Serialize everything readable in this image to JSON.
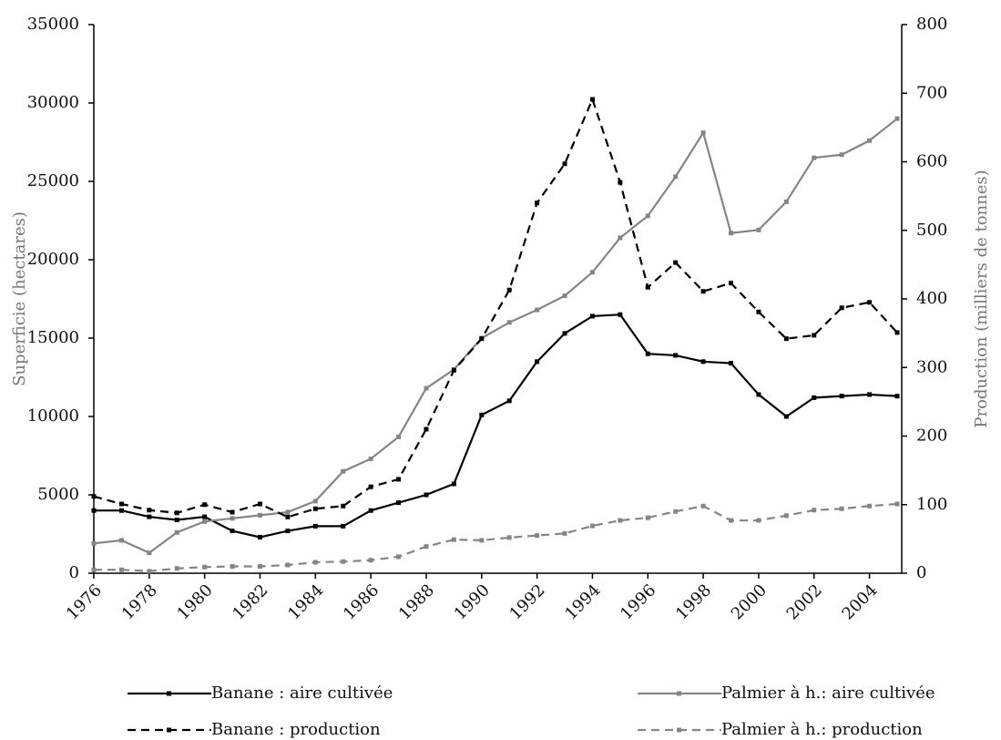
{
  "chart_data": {
    "type": "line",
    "y_label": "Superficie (hectares)",
    "y2_label": "Production (milliers de tonnes)",
    "x": [
      1976,
      1977,
      1978,
      1979,
      1980,
      1981,
      1982,
      1983,
      1984,
      1985,
      1986,
      1987,
      1988,
      1989,
      1990,
      1991,
      1992,
      1993,
      1994,
      1995,
      1996,
      1997,
      1998,
      1999,
      2000,
      2001,
      2002,
      2003,
      2004,
      2005
    ],
    "xlim": [
      1976,
      2005
    ],
    "xticks": [
      1976,
      1978,
      1980,
      1982,
      1984,
      1986,
      1988,
      1990,
      1992,
      1994,
      1996,
      1998,
      2000,
      2002,
      2004
    ],
    "ylim": [
      0,
      35000
    ],
    "yticks": [
      0,
      5000,
      10000,
      15000,
      20000,
      25000,
      30000,
      35000
    ],
    "y2lim": [
      0,
      800
    ],
    "y2ticks": [
      0,
      100,
      200,
      300,
      400,
      500,
      600,
      700,
      800
    ],
    "grid": false,
    "legend": "bottom",
    "series": [
      {
        "name": "Banane : aire cultivée",
        "color": "#000000",
        "dashed": false,
        "values": [
          4000,
          4000,
          3600,
          3400,
          3600,
          2700,
          2300,
          2700,
          3000,
          3000,
          4000,
          4500,
          5000,
          5700,
          10100,
          11000,
          13500,
          15300,
          16400,
          16500,
          14000,
          13900,
          13500,
          13400,
          11400,
          10000,
          11200,
          11300,
          11400,
          11300
        ]
      },
      {
        "name": "Palmier à h.: aire cultivée",
        "color": "#858585",
        "dashed": false,
        "values": [
          1900,
          2100,
          1300,
          2600,
          3300,
          3500,
          3700,
          3900,
          4600,
          6500,
          7300,
          8700,
          11800,
          13000,
          15000,
          16000,
          16800,
          17700,
          19200,
          21400,
          22800,
          25300,
          28100,
          21700,
          21900,
          23700,
          26500,
          26700,
          27600,
          29000
        ]
      },
      {
        "name": "Banane : production",
        "color": "#000000",
        "dashed": true,
        "axis": "y2",
        "values": [
          112,
          101,
          92,
          88,
          100,
          89,
          101,
          82,
          94,
          98,
          126,
          137,
          210,
          296,
          342,
          413,
          540,
          597,
          691,
          570,
          417,
          453,
          411,
          423,
          381,
          342,
          347,
          387,
          395,
          351
        ]
      },
      {
        "name": "Palmier à h.: production",
        "color": "#858585",
        "dashed": true,
        "axis": "y2",
        "values": [
          5,
          5,
          3,
          7,
          9,
          10,
          10,
          12,
          16,
          17,
          19,
          24,
          39,
          49,
          48,
          52,
          55,
          58,
          69,
          77,
          81,
          90,
          98,
          77,
          77,
          84,
          92,
          94,
          98,
          101
        ]
      }
    ]
  }
}
